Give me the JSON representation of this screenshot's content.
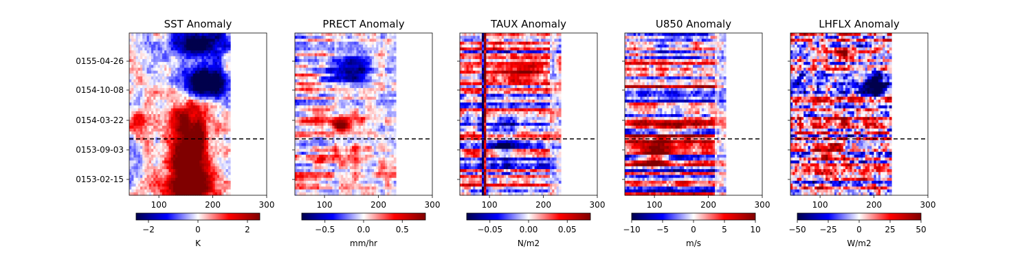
{
  "chart_data": [
    {
      "type": "heatmap",
      "title": "SST Anomaly",
      "xticks": [
        "100",
        "200",
        "300"
      ],
      "xtick_values": [
        100,
        200,
        300
      ],
      "xlim": [
        45,
        300
      ],
      "yticks": [
        "0155-04-26",
        "0154-10-08",
        "0154-03-22",
        "0153-09-03",
        "0153-02-15"
      ],
      "colorbar": {
        "label": "K",
        "ticks": [
          "−2",
          "0",
          "2"
        ],
        "tick_values": [
          -2,
          0,
          2
        ],
        "range": [
          -2.5,
          2.5
        ],
        "colormap": "seismic"
      },
      "divider_line": "dashed horizontal line"
    },
    {
      "type": "heatmap",
      "title": "PRECT Anomaly",
      "xticks": [
        "100",
        "200",
        "300"
      ],
      "xtick_values": [
        100,
        200,
        300
      ],
      "xlim": [
        45,
        300
      ],
      "colorbar": {
        "label": "mm/hr",
        "ticks": [
          "−0.5",
          "0.0",
          "0.5"
        ],
        "tick_values": [
          -0.5,
          0,
          0.5
        ],
        "range": [
          -0.8,
          0.8
        ],
        "colormap": "seismic"
      },
      "divider_line": "dashed horizontal line"
    },
    {
      "type": "heatmap",
      "title": "TAUX Anomaly",
      "xticks": [
        "100",
        "200",
        "300"
      ],
      "xtick_values": [
        100,
        200,
        300
      ],
      "xlim": [
        45,
        300
      ],
      "colorbar": {
        "label": "N/m2",
        "ticks": [
          "−0.05",
          "0.00",
          "0.05"
        ],
        "tick_values": [
          -0.05,
          0,
          0.05
        ],
        "range": [
          -0.08,
          0.08
        ],
        "colormap": "seismic"
      },
      "divider_line": "dashed horizontal line"
    },
    {
      "type": "heatmap",
      "title": "U850 Anomaly",
      "xticks": [
        "100",
        "200",
        "300"
      ],
      "xtick_values": [
        100,
        200,
        300
      ],
      "xlim": [
        45,
        300
      ],
      "colorbar": {
        "label": "m/s",
        "ticks": [
          "−10",
          "−5",
          "0",
          "5",
          "10"
        ],
        "tick_values": [
          -10,
          -5,
          0,
          5,
          10
        ],
        "range": [
          -10,
          10
        ],
        "colormap": "seismic"
      },
      "divider_line": "dashed horizontal line"
    },
    {
      "type": "heatmap",
      "title": "LHFLX Anomaly",
      "xticks": [
        "100",
        "200",
        "300"
      ],
      "xtick_values": [
        100,
        200,
        300
      ],
      "xlim": [
        45,
        300
      ],
      "colorbar": {
        "label": "W/m2",
        "ticks": [
          "−50",
          "−25",
          "0",
          "25",
          "50"
        ],
        "tick_values": [
          -50,
          -25,
          0,
          25,
          50
        ],
        "range": [
          -50,
          50
        ],
        "colormap": "seismic"
      },
      "divider_line": "dashed horizontal line"
    }
  ]
}
